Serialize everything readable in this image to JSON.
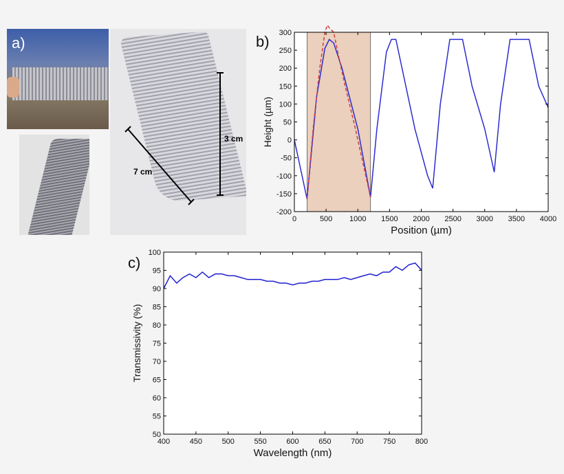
{
  "panels": {
    "a": {
      "label": "a)",
      "dim_vertical": "3 cm",
      "dim_horizontal": "7 cm"
    },
    "b": {
      "label": "b)"
    },
    "c": {
      "label": "c)"
    }
  },
  "chart_data": [
    {
      "id": "b",
      "type": "line",
      "xlabel": "Position (µm)",
      "ylabel": "Height (µm)",
      "xlim": [
        0,
        4000
      ],
      "ylim": [
        -200,
        300
      ],
      "xticks": [
        0,
        500,
        1000,
        1500,
        2000,
        2500,
        3000,
        3500,
        4000
      ],
      "yticks": [
        -200,
        -150,
        -100,
        -50,
        0,
        50,
        100,
        150,
        200,
        250,
        300
      ],
      "grid": false,
      "highlight_region": {
        "x": [
          200,
          1200
        ],
        "color": "#ead0bd"
      },
      "series": [
        {
          "style": "solid",
          "color": "#2b2bd0",
          "x": [
            0,
            200,
            350,
            480,
            550,
            620,
            750,
            1000,
            1200,
            1300,
            1450,
            1530,
            1600,
            1720,
            1900,
            2100,
            2180,
            2300,
            2450,
            2650,
            2800,
            3000,
            3150,
            3250,
            3400,
            3700,
            3850,
            4000
          ],
          "y": [
            0,
            -165,
            120,
            255,
            280,
            270,
            200,
            30,
            -160,
            30,
            245,
            280,
            280,
            180,
            30,
            -100,
            -135,
            100,
            280,
            280,
            150,
            30,
            -90,
            100,
            280,
            280,
            150,
            90
          ]
        },
        {
          "style": "dashed",
          "color": "#d04040",
          "x": [
            200,
            300,
            400,
            480,
            520,
            560,
            620,
            700,
            800,
            950,
            1100,
            1200
          ],
          "y": [
            -165,
            40,
            200,
            300,
            320,
            310,
            300,
            230,
            150,
            40,
            -80,
            -160
          ]
        }
      ]
    },
    {
      "id": "c",
      "type": "line",
      "xlabel": "Wavelength (nm)",
      "ylabel": "Transmissivity (%)",
      "xlim": [
        400,
        800
      ],
      "ylim": [
        50,
        100
      ],
      "xticks": [
        400,
        450,
        500,
        550,
        600,
        650,
        700,
        750,
        800
      ],
      "yticks": [
        50,
        55,
        60,
        65,
        70,
        75,
        80,
        85,
        90,
        95,
        100
      ],
      "grid": false,
      "series": [
        {
          "color": "#1f1fd0",
          "x": [
            400,
            410,
            420,
            430,
            440,
            450,
            460,
            470,
            480,
            490,
            500,
            510,
            520,
            530,
            540,
            550,
            560,
            570,
            580,
            590,
            600,
            610,
            620,
            630,
            640,
            650,
            660,
            670,
            680,
            690,
            700,
            710,
            720,
            730,
            740,
            750,
            760,
            770,
            780,
            790,
            800
          ],
          "y": [
            90,
            93.5,
            91.5,
            93,
            94,
            93,
            94.5,
            93,
            94,
            94,
            93.5,
            93.5,
            93,
            92.5,
            92.5,
            92.5,
            92,
            92,
            91.5,
            91.5,
            91,
            91.5,
            91.5,
            92,
            92,
            92.5,
            92.5,
            92.5,
            93,
            92.5,
            93,
            93.5,
            94,
            93.5,
            94.5,
            94.5,
            96,
            95,
            96.5,
            97,
            95
          ]
        }
      ]
    }
  ]
}
